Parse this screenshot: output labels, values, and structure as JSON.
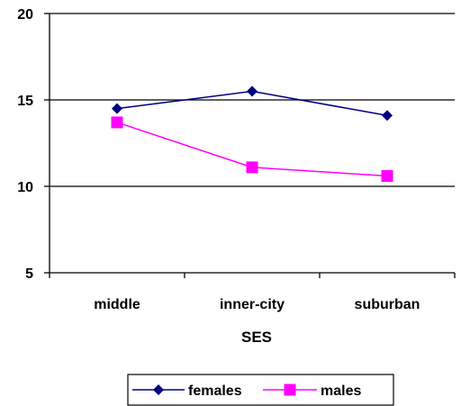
{
  "chart_data": {
    "type": "line",
    "categories": [
      "middle",
      "inner-city",
      "suburban"
    ],
    "series": [
      {
        "name": "females",
        "values": [
          14.5,
          15.5,
          14.1
        ],
        "color": "#000080",
        "marker": "diamond"
      },
      {
        "name": "males",
        "values": [
          13.7,
          11.1,
          10.6
        ],
        "color": "#ff00ff",
        "marker": "square"
      }
    ],
    "title": "",
    "xlabel": "SES",
    "ylabel": "",
    "ylim": [
      5,
      20
    ],
    "yticks": [
      5,
      10,
      15,
      20
    ],
    "grid": "horizontal",
    "legend": "bottom"
  }
}
